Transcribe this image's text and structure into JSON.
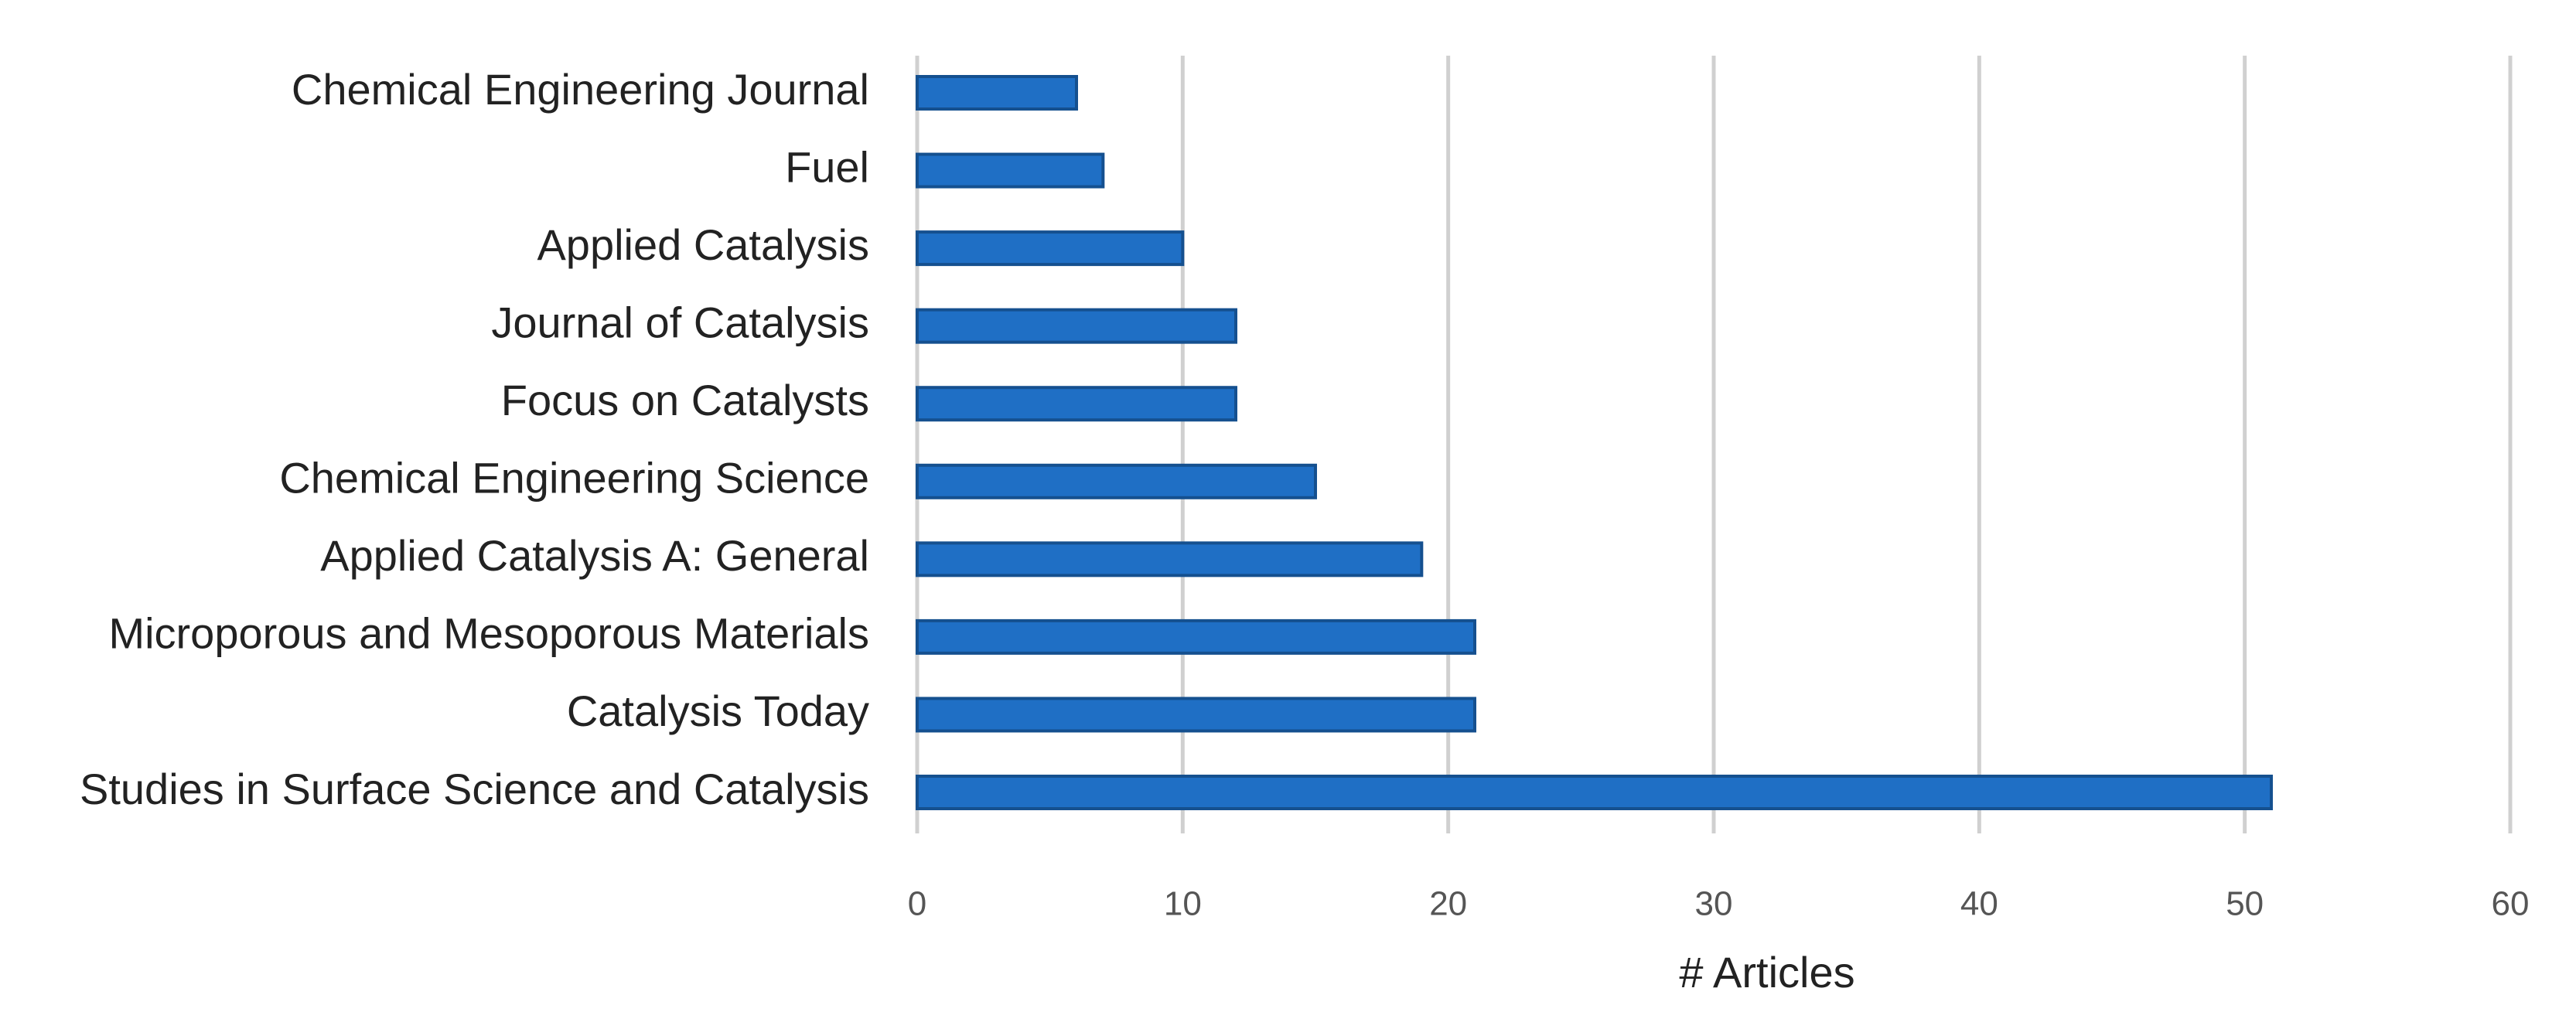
{
  "chart_data": {
    "type": "barh",
    "categories": [
      "Chemical Engineering Journal",
      "Fuel",
      "Applied Catalysis",
      "Journal of Catalysis",
      "Focus on Catalysts",
      "Chemical Engineering Science",
      "Applied Catalysis A: General",
      "Microporous and Mesoporous Materials",
      "Catalysis Today",
      "Studies in Surface Science and Catalysis"
    ],
    "values": [
      6,
      7,
      10,
      12,
      12,
      15,
      19,
      21,
      21,
      51
    ],
    "color": "#1f6fc5",
    "xlabel": "# Articles",
    "xlim": [
      0,
      60
    ],
    "xticks": [
      0,
      10,
      20,
      30,
      40,
      50,
      60
    ],
    "grid": true
  }
}
